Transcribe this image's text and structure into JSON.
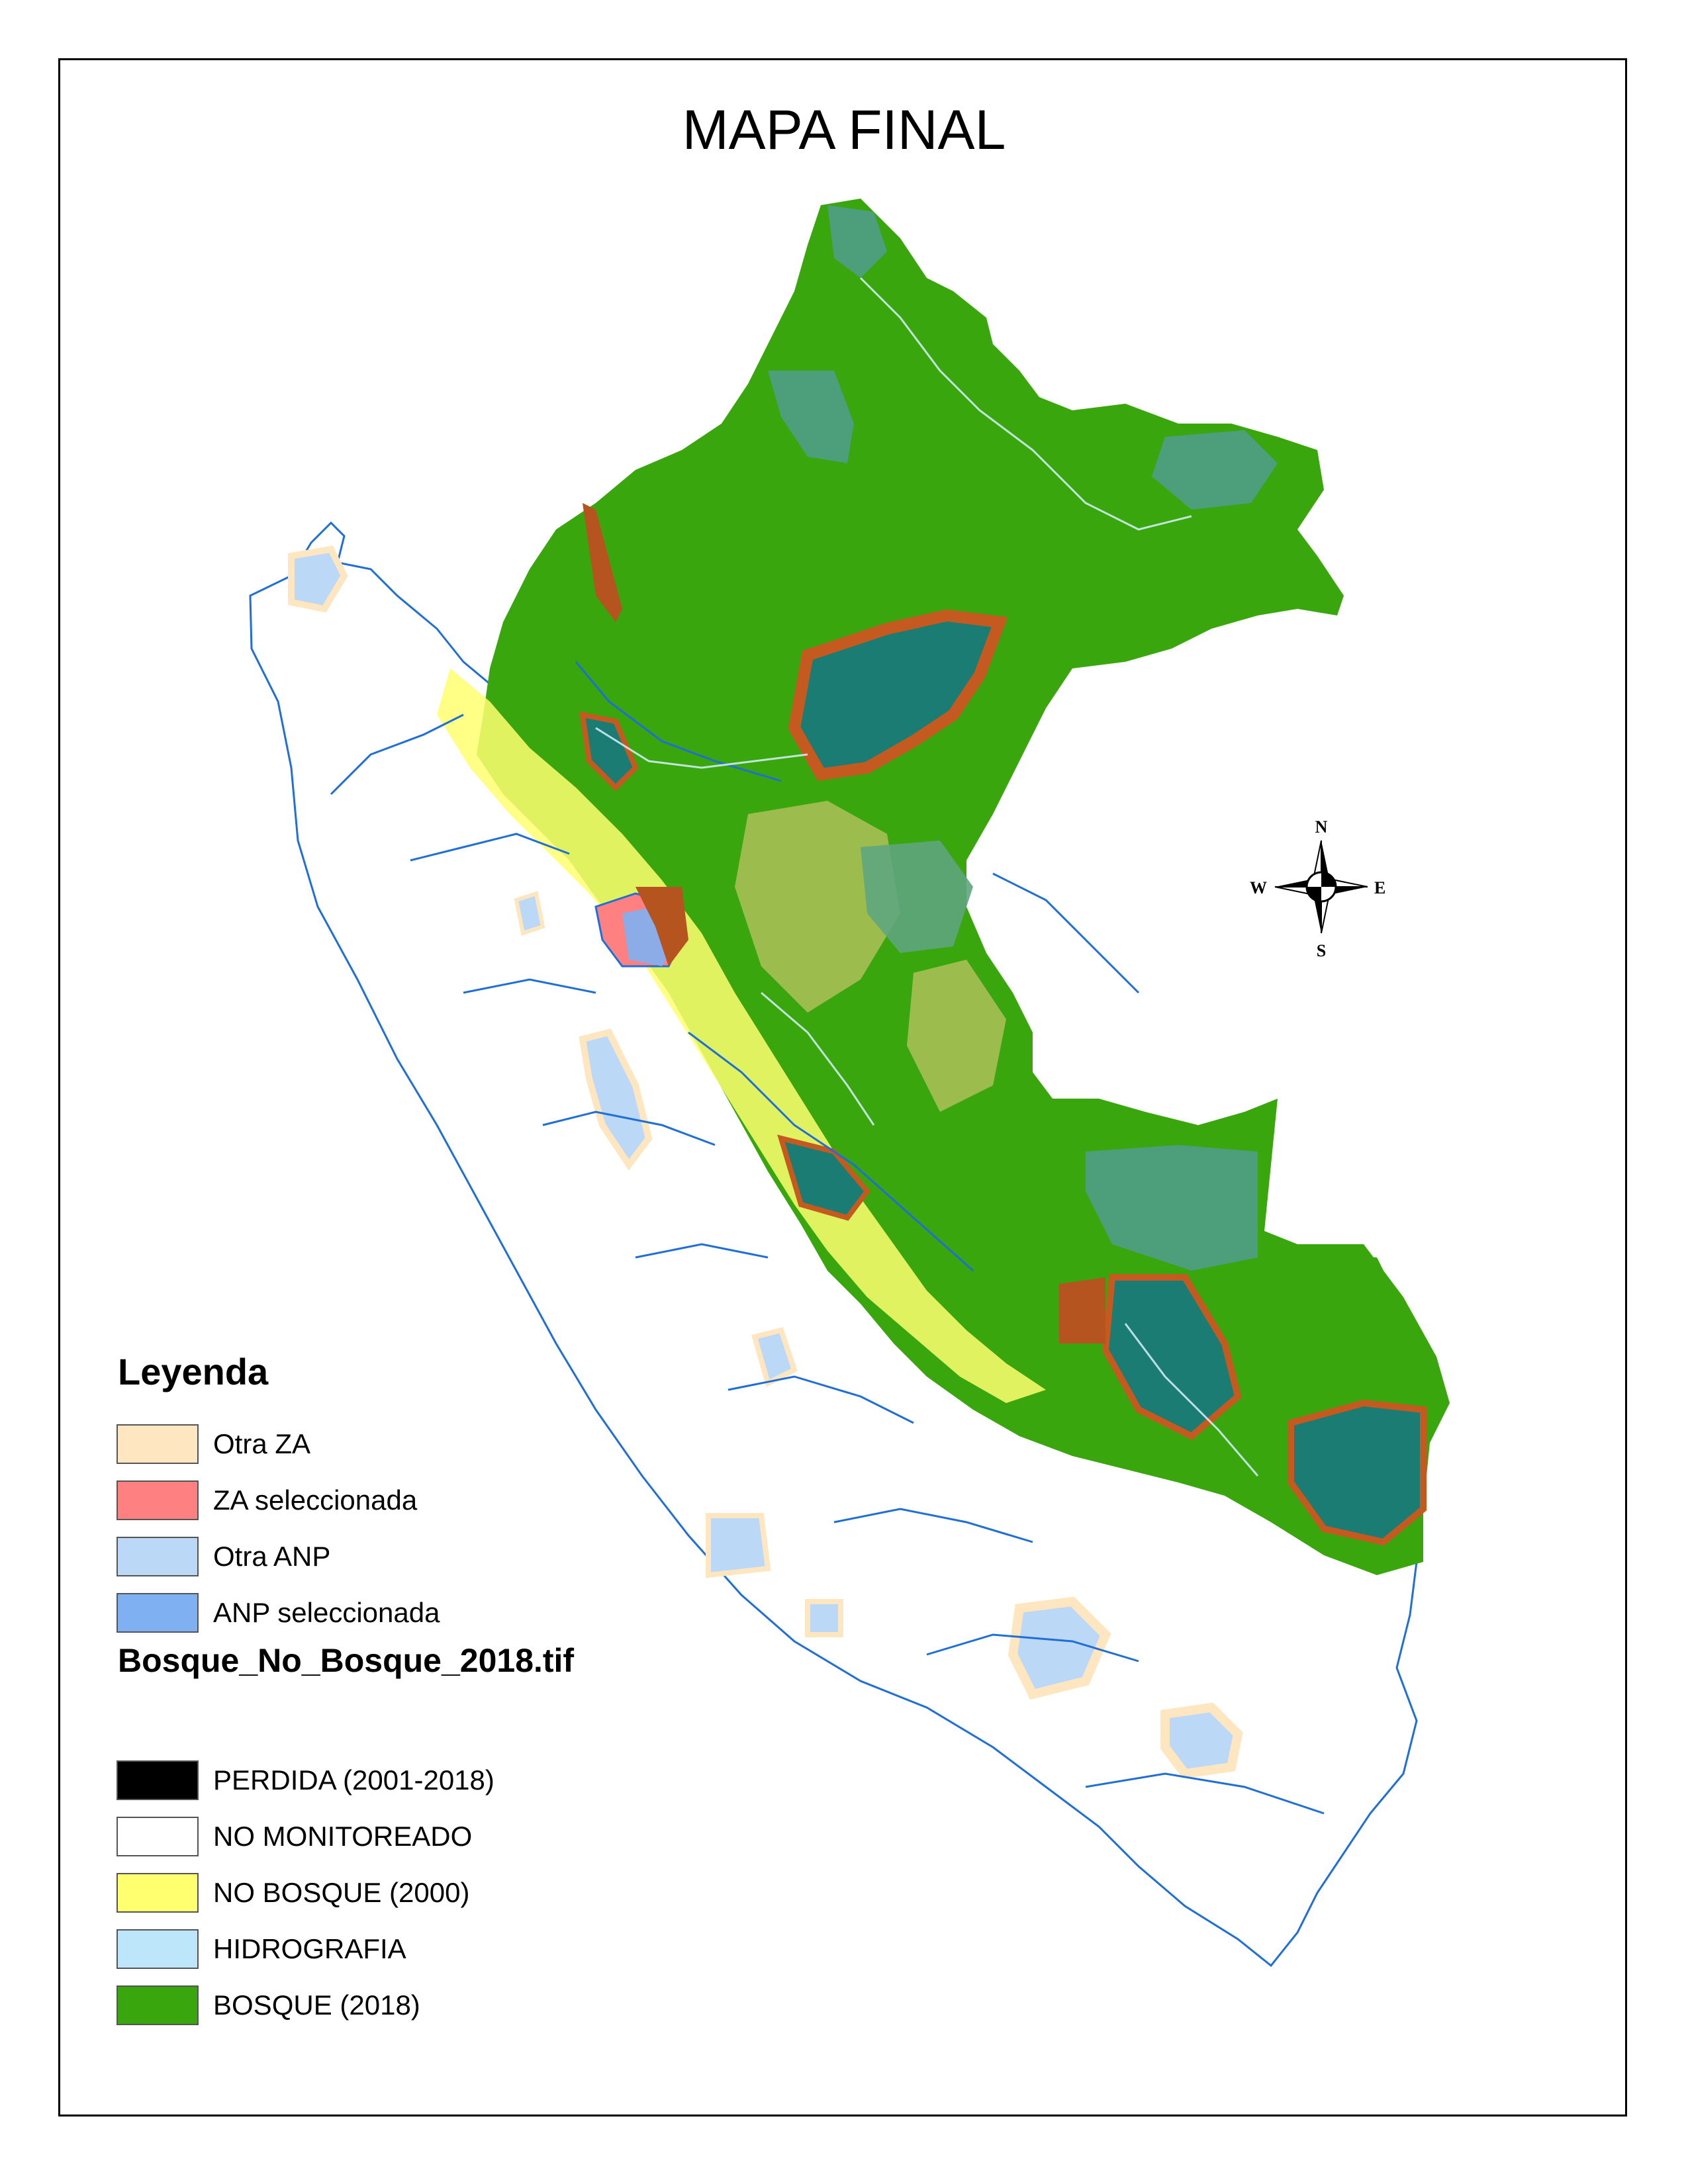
{
  "title": "MAPA FINAL",
  "compass": {
    "north": "N",
    "south": "S",
    "east": "E",
    "west": "W"
  },
  "legend": {
    "heading": "Leyenda",
    "zones": [
      {
        "label": "Otra ZA",
        "color": "#fde6c0"
      },
      {
        "label": "ZA seleccionada",
        "color": "#ff8080"
      },
      {
        "label": "Otra ANP",
        "color": "#bcd8f7"
      },
      {
        "label": "ANP seleccionada",
        "color": "#7fb0f2"
      }
    ],
    "raster_heading": "Bosque_No_Bosque_2018.tif",
    "classes": [
      {
        "label": "PERDIDA (2001-2018)",
        "color": "#000000"
      },
      {
        "label": "NO MONITOREADO",
        "color": "#ffffff"
      },
      {
        "label": "NO BOSQUE (2000)",
        "color": "#ffff70"
      },
      {
        "label": "HIDROGRAFIA",
        "color": "#bee6fb"
      },
      {
        "label": "BOSQUE (2018)",
        "color": "#3aa60e"
      }
    ]
  }
}
